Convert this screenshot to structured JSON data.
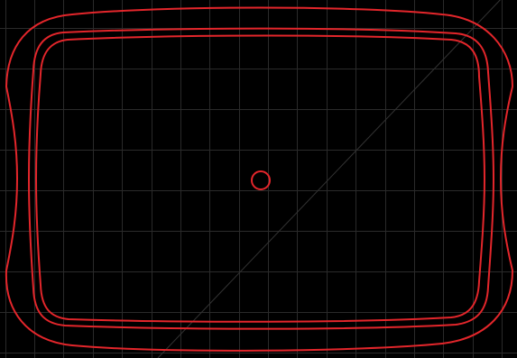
{
  "viewport": {
    "background_color": "#000000",
    "grid_color": "#2a2a2a",
    "diagonal_color": "#333333",
    "outline_color": "#e3262b"
  },
  "shapes": {
    "outline_count": 3,
    "has_center_marker": true,
    "has_diagonal_guide": true
  }
}
